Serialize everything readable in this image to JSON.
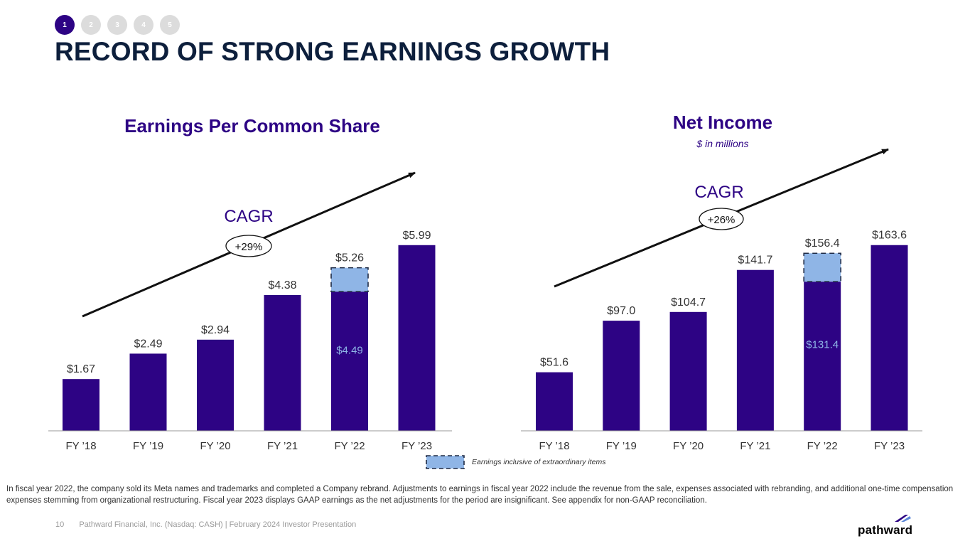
{
  "nav": {
    "steps": [
      "1",
      "2",
      "3",
      "4",
      "5"
    ],
    "active_index": 0
  },
  "page": {
    "title": "RECORD OF STRONG EARNINGS GROWTH"
  },
  "colors": {
    "bar": "#2d0384",
    "extraordinary": "#8fb5e6",
    "heading": "#2d0384",
    "title": "#0d1f3c"
  },
  "chart_data": [
    {
      "type": "bar",
      "title": "Earnings Per Common Share",
      "subtitle": "",
      "categories": [
        "FY ’18",
        "FY ’19",
        "FY ’20",
        "FY ’21",
        "FY ’22",
        "FY ’23"
      ],
      "values": [
        1.67,
        2.49,
        2.94,
        4.38,
        5.26,
        5.99
      ],
      "value_labels": [
        "$1.67",
        "$2.49",
        "$2.94",
        "$4.38",
        "$5.26",
        "$5.99"
      ],
      "base": {
        "index": 4,
        "value": 4.49,
        "label": "$4.49"
      },
      "cagr_label": "CAGR",
      "cagr_value": "+29%",
      "ylim": [
        0,
        6.65
      ]
    },
    {
      "type": "bar",
      "title": "Net Income",
      "subtitle": "$ in millions",
      "categories": [
        "FY ’18",
        "FY ’19",
        "FY ’20",
        "FY ’21",
        "FY ’22",
        "FY ’23"
      ],
      "values": [
        51.6,
        97.0,
        104.7,
        141.7,
        156.4,
        163.6
      ],
      "value_labels": [
        "$51.6",
        "$97.0",
        "$104.7",
        "$141.7",
        "$156.4",
        "$163.6"
      ],
      "base": {
        "index": 4,
        "value": 131.4,
        "label": "$131.4"
      },
      "cagr_label": "CAGR",
      "cagr_value": "+26%",
      "ylim": [
        0,
        181.6
      ]
    }
  ],
  "legend": {
    "label": "Earnings inclusive of extraordinary items"
  },
  "footnote": "In fiscal year 2022, the company sold its Meta names and trademarks and completed a Company rebrand. Adjustments to earnings in fiscal year 2022 include the revenue from the sale, expenses associated with rebranding, and additional one-time compensation expenses stemming from organizational restructuring. Fiscal year 2023 displays GAAP earnings as the net adjustments for the period are insignificant. See appendix for non-GAAP reconciliation.",
  "footer": {
    "page_number": "10",
    "text": "Pathward Financial, Inc. (Nasdaq: CASH) | February 2024 Investor Presentation"
  },
  "brand": {
    "name": "pathward"
  }
}
